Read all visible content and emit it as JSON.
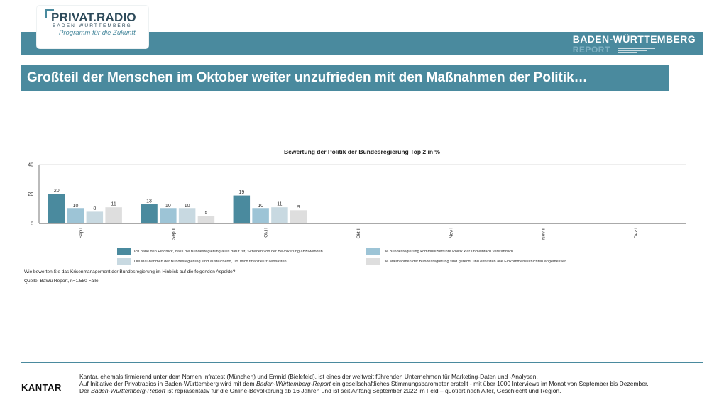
{
  "logo": {
    "title": "PRIVAT.RADIO",
    "subtitle": "BADEN-WÜRTTEMBERG",
    "tagline": "Programm für die Zukunft"
  },
  "report_brand": {
    "title": "BADEN-WÜRTTEMBERG",
    "subtitle": "REPORT"
  },
  "headline": "Großteil der Menschen im Oktober weiter unzufrieden mit den Maßnahmen der Politik…",
  "colors": {
    "accent": "#4a8a9e",
    "series": [
      "#4a8a9e",
      "#9dc4d6",
      "#c8d9e1",
      "#dedede"
    ]
  },
  "chart_data": {
    "type": "bar",
    "title": "Bewertung der Politik der Bundesregierung Top 2 in %",
    "categories": [
      "Sep I",
      "Sep II",
      "Okt I",
      "Okt II",
      "Nov I",
      "Nov II",
      "Dez I"
    ],
    "ylim": [
      0,
      40
    ],
    "yticks": [
      0,
      20,
      40
    ],
    "grid": true,
    "legend_placement": "bottom",
    "series": [
      {
        "name": "Ich habe den Eindruck, dass die Bundesregierung alles dafür tut, Schaden von der Bevölkerung abzuwenden",
        "values": [
          20,
          13,
          19,
          null,
          null,
          null,
          null
        ]
      },
      {
        "name": "Die Bundesregierung kommuniziert ihre Politik klar und einfach verständlich",
        "values": [
          10,
          10,
          10,
          null,
          null,
          null,
          null
        ]
      },
      {
        "name": "Die Maßnahmen der Bundesregierung sind ausreichend, um mich finanziell zu entlasten",
        "values": [
          8,
          10,
          11,
          null,
          null,
          null,
          null
        ]
      },
      {
        "name": "Die Maßnahmen der Bundesregierung sind gerecht und entlasten alle Einkommensschichten angemessen",
        "values": [
          11,
          5,
          9,
          null,
          null,
          null,
          null
        ]
      }
    ]
  },
  "question": "Wie bewerten Sie das Krisenmanagement der Bundesregierung im Hinblick auf die folgenden Aspekte?",
  "source": "Quelle: BaWü Report, n=1.580 Fälle",
  "footer": {
    "brand": "KANTAR",
    "line1": "Kantar, ehemals firmierend unter dem Namen Infratest (München) und Emnid (Bielefeld), ist eines der weltweit führenden Unternehmen für Marketing-Daten und -Analysen.",
    "line2_a": "Auf Initiative der Privatradios in Baden-Württemberg wird mit dem ",
    "line2_em": "Baden-Württemberg-Report",
    "line2_b": " ein gesellschaftliches Stimmungsbarometer erstellt - mit über 1000 Interviews im Monat von September bis Dezember.",
    "line3_a": "Der ",
    "line3_em": "Baden-Württemberg-Report",
    "line3_b": " ist repräsentativ für die Online-Bevölkerung ab 16 Jahren und ist seit Anfang September 2022 im Feld – quotiert nach Alter, Geschlecht und Region."
  }
}
